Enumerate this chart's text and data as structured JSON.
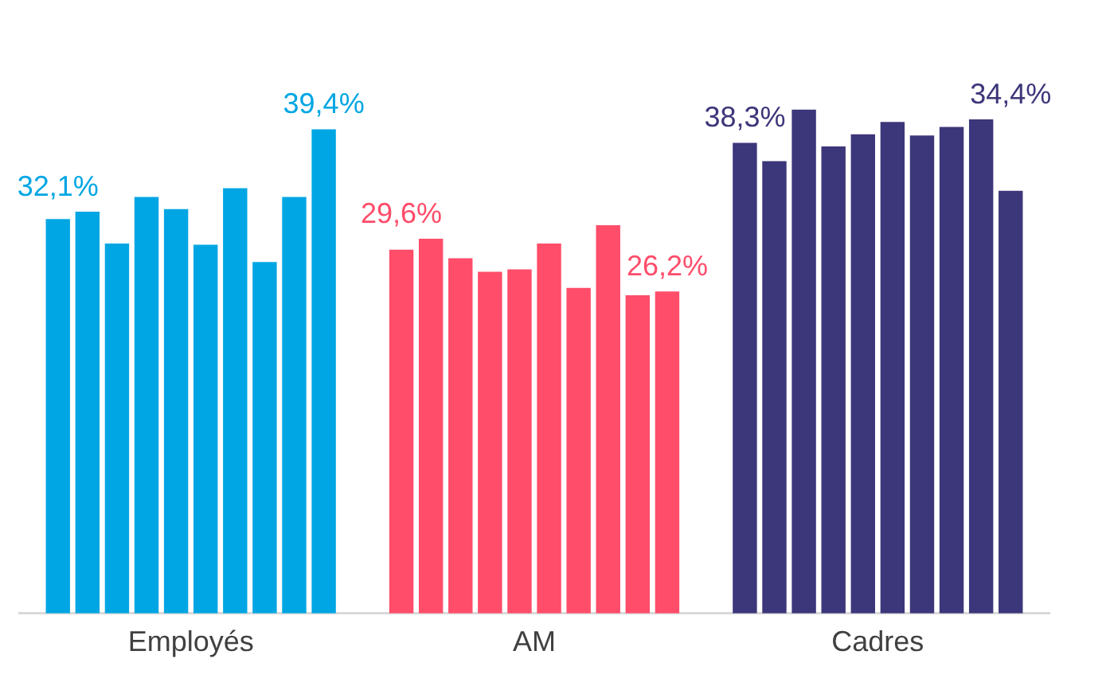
{
  "chart_data": {
    "type": "bar",
    "categories": [
      "Employés",
      "AM",
      "Cadres"
    ],
    "series": [
      {
        "colors": [
          "#00a6e3",
          "#ff4d6a",
          "#3c367a"
        ],
        "values": [
          32.1,
          29.6,
          38.3
        ],
        "value_labels": [
          "32,1%",
          "29,6%",
          "38,3%"
        ]
      },
      {
        "colors": [
          "#00a6e3",
          "#ff4d6a",
          "#3c367a"
        ],
        "values": [
          32.7,
          30.5,
          36.8
        ]
      },
      {
        "colors": [
          "#00a6e3",
          "#ff4d6a",
          "#3c367a"
        ],
        "values": [
          30.1,
          28.9,
          41.0
        ]
      },
      {
        "colors": [
          "#00a6e3",
          "#ff4d6a",
          "#3c367a"
        ],
        "values": [
          33.9,
          27.8,
          38.0
        ]
      },
      {
        "colors": [
          "#00a6e3",
          "#ff4d6a",
          "#3c367a"
        ],
        "values": [
          32.9,
          28.0,
          39.0
        ]
      },
      {
        "colors": [
          "#00a6e3",
          "#ff4d6a",
          "#3c367a"
        ],
        "values": [
          30.0,
          30.1,
          40.0
        ]
      },
      {
        "colors": [
          "#00a6e3",
          "#ff4d6a",
          "#3c367a"
        ],
        "values": [
          34.6,
          26.5,
          38.9
        ]
      },
      {
        "colors": [
          "#00a6e3",
          "#ff4d6a",
          "#3c367a"
        ],
        "values": [
          28.6,
          31.6,
          39.6
        ]
      },
      {
        "colors": [
          "#00a6e3",
          "#ff4d6a",
          "#3c367a"
        ],
        "values": [
          33.9,
          25.9,
          40.2
        ]
      },
      {
        "colors": [
          "#00a6e3",
          "#ff4d6a",
          "#3c367a"
        ],
        "values": [
          39.4,
          26.2,
          34.4
        ],
        "value_labels": [
          "39,4%",
          "26,2%",
          "34,4%"
        ]
      }
    ],
    "tick_labels": "x",
    "grid": false,
    "legend": false
  }
}
